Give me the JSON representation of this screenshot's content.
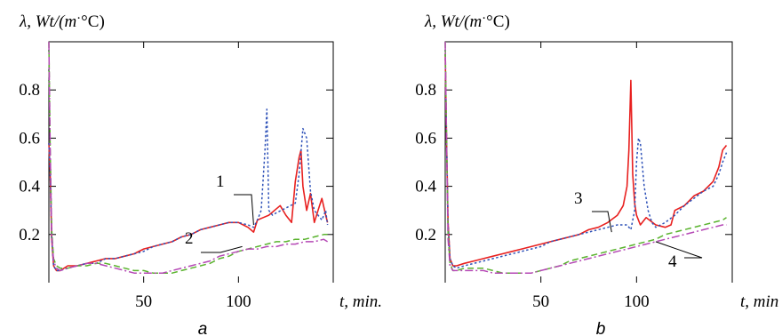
{
  "colors": {
    "red_solid": "#e8201f",
    "blue_dotted": "#2f52b8",
    "green_dashed": "#5ab32e",
    "magenta_dashdot": "#b548b5",
    "axis": "#000000"
  },
  "chart_data": [
    {
      "type": "line",
      "panel_label": "a",
      "title": "",
      "ylabel": "λ, Wt/(m·°C)",
      "ylabel_parts": {
        "main": "λ, Wt/(m",
        "dot": "·",
        "unit": "°C)"
      },
      "xlabel": "t, min.",
      "xlim": [
        0,
        150
      ],
      "ylim": [
        0,
        1.0
      ],
      "x_ticks": [
        50,
        100
      ],
      "x_tick_labels": [
        "50",
        "100"
      ],
      "y_ticks": [
        0.2,
        0.4,
        0.6,
        0.8
      ],
      "y_tick_labels": [
        "0.2",
        "0.4",
        "0.6",
        "0.8"
      ],
      "grid": false,
      "annotations": [
        {
          "text": "1",
          "target_x": 108,
          "target_y": 0.24
        },
        {
          "text": "2",
          "target_x": 102,
          "target_y": 0.15
        }
      ],
      "series": [
        {
          "style": "solid",
          "color": "#e8201f",
          "x": [
            0,
            0.7,
            1.5,
            2.5,
            4,
            6,
            10,
            15,
            20,
            25,
            30,
            35,
            40,
            45,
            50,
            55,
            60,
            65,
            70,
            75,
            80,
            85,
            90,
            95,
            100,
            105,
            108,
            110,
            113,
            116,
            119,
            122,
            125,
            128,
            130,
            132,
            133,
            134,
            136,
            138,
            140,
            142,
            144,
            146,
            147
          ],
          "y": [
            0.58,
            0.45,
            0.18,
            0.07,
            0.05,
            0.05,
            0.07,
            0.07,
            0.08,
            0.09,
            0.1,
            0.1,
            0.11,
            0.12,
            0.14,
            0.15,
            0.16,
            0.17,
            0.19,
            0.2,
            0.22,
            0.23,
            0.24,
            0.25,
            0.25,
            0.23,
            0.21,
            0.26,
            0.27,
            0.28,
            0.3,
            0.32,
            0.28,
            0.25,
            0.42,
            0.52,
            0.55,
            0.4,
            0.3,
            0.37,
            0.25,
            0.3,
            0.35,
            0.28,
            0.25
          ]
        },
        {
          "style": "dotted",
          "color": "#2f52b8",
          "x": [
            0,
            0.7,
            1.5,
            2.5,
            4,
            6,
            10,
            15,
            20,
            25,
            30,
            35,
            40,
            45,
            50,
            55,
            60,
            65,
            70,
            75,
            80,
            85,
            90,
            95,
            100,
            105,
            108,
            110,
            112,
            114,
            115,
            116,
            118,
            120,
            125,
            130,
            132,
            134,
            136,
            138,
            140,
            142,
            144,
            146,
            147
          ],
          "y": [
            0.58,
            0.45,
            0.18,
            0.07,
            0.05,
            0.05,
            0.06,
            0.07,
            0.08,
            0.08,
            0.1,
            0.1,
            0.11,
            0.12,
            0.13,
            0.15,
            0.16,
            0.17,
            0.19,
            0.2,
            0.22,
            0.23,
            0.24,
            0.25,
            0.25,
            0.24,
            0.23,
            0.26,
            0.3,
            0.55,
            0.72,
            0.3,
            0.28,
            0.29,
            0.31,
            0.33,
            0.45,
            0.64,
            0.6,
            0.38,
            0.3,
            0.28,
            0.26,
            0.3,
            0.24
          ]
        },
        {
          "style": "dashed",
          "color": "#5ab32e",
          "x": [
            0,
            0.7,
            1.5,
            2.5,
            4,
            6,
            10,
            15,
            20,
            25,
            30,
            35,
            40,
            45,
            50,
            55,
            60,
            65,
            70,
            75,
            80,
            85,
            90,
            95,
            100,
            105,
            110,
            115,
            120,
            125,
            130,
            135,
            140,
            145,
            147
          ],
          "y": [
            1.0,
            0.55,
            0.22,
            0.1,
            0.07,
            0.06,
            0.06,
            0.07,
            0.07,
            0.08,
            0.08,
            0.07,
            0.06,
            0.05,
            0.05,
            0.04,
            0.04,
            0.04,
            0.05,
            0.06,
            0.07,
            0.08,
            0.1,
            0.11,
            0.13,
            0.14,
            0.15,
            0.16,
            0.17,
            0.17,
            0.18,
            0.18,
            0.19,
            0.2,
            0.2
          ]
        },
        {
          "style": "dashdot",
          "color": "#b548b5",
          "x": [
            0,
            0.7,
            1.5,
            2.5,
            4,
            6,
            10,
            15,
            20,
            25,
            30,
            35,
            40,
            45,
            50,
            55,
            60,
            65,
            70,
            75,
            80,
            85,
            90,
            95,
            100,
            105,
            110,
            115,
            120,
            125,
            130,
            135,
            140,
            145,
            147
          ],
          "y": [
            1.0,
            0.55,
            0.2,
            0.09,
            0.06,
            0.05,
            0.06,
            0.07,
            0.08,
            0.08,
            0.07,
            0.06,
            0.05,
            0.04,
            0.04,
            0.04,
            0.04,
            0.05,
            0.06,
            0.07,
            0.08,
            0.09,
            0.11,
            0.12,
            0.13,
            0.14,
            0.14,
            0.15,
            0.15,
            0.16,
            0.16,
            0.17,
            0.17,
            0.18,
            0.17
          ]
        }
      ]
    },
    {
      "type": "line",
      "panel_label": "b",
      "title": "",
      "ylabel": "λ, Wt/(m·°C)",
      "ylabel_parts": {
        "main": "λ, Wt/(m",
        "dot": "·",
        "unit": "°C)"
      },
      "xlabel": "t, min",
      "xlim": [
        0,
        150
      ],
      "ylim": [
        0,
        1.0
      ],
      "x_ticks": [
        50,
        100
      ],
      "x_tick_labels": [
        "50",
        "100"
      ],
      "y_ticks": [
        0.2,
        0.4,
        0.6,
        0.8
      ],
      "y_tick_labels": [
        "0.2",
        "0.4",
        "0.6",
        "0.8"
      ],
      "grid": false,
      "annotations": [
        {
          "text": "3",
          "target_x": 87,
          "target_y": 0.21
        },
        {
          "text": "4",
          "target_x": 110,
          "target_y": 0.17
        }
      ],
      "series": [
        {
          "style": "solid",
          "color": "#e8201f",
          "x": [
            0,
            0.7,
            1.5,
            2.5,
            4,
            6,
            10,
            15,
            20,
            25,
            30,
            35,
            40,
            45,
            50,
            55,
            60,
            65,
            70,
            75,
            80,
            85,
            90,
            93,
            95,
            96,
            97,
            98,
            99,
            100,
            102,
            105,
            110,
            115,
            118,
            120,
            125,
            130,
            135,
            140,
            143,
            145,
            147
          ],
          "y": [
            0.95,
            0.6,
            0.25,
            0.1,
            0.07,
            0.07,
            0.08,
            0.09,
            0.1,
            0.11,
            0.12,
            0.13,
            0.14,
            0.15,
            0.16,
            0.17,
            0.18,
            0.19,
            0.2,
            0.22,
            0.23,
            0.25,
            0.28,
            0.32,
            0.4,
            0.55,
            0.84,
            0.45,
            0.33,
            0.28,
            0.24,
            0.27,
            0.24,
            0.23,
            0.24,
            0.3,
            0.32,
            0.36,
            0.38,
            0.42,
            0.48,
            0.55,
            0.57
          ]
        },
        {
          "style": "dotted",
          "color": "#2f52b8",
          "x": [
            0,
            0.7,
            1.5,
            2.5,
            4,
            6,
            10,
            15,
            20,
            25,
            30,
            35,
            40,
            45,
            50,
            55,
            60,
            65,
            70,
            75,
            80,
            85,
            90,
            95,
            97,
            99,
            100,
            101,
            102,
            104,
            106,
            108,
            110,
            115,
            120,
            125,
            130,
            135,
            140,
            143,
            145,
            147
          ],
          "y": [
            0.95,
            0.6,
            0.25,
            0.1,
            0.07,
            0.06,
            0.07,
            0.08,
            0.09,
            0.1,
            0.11,
            0.12,
            0.13,
            0.14,
            0.15,
            0.17,
            0.18,
            0.19,
            0.2,
            0.21,
            0.22,
            0.23,
            0.24,
            0.24,
            0.22,
            0.3,
            0.5,
            0.6,
            0.58,
            0.4,
            0.3,
            0.25,
            0.23,
            0.25,
            0.28,
            0.32,
            0.35,
            0.38,
            0.4,
            0.45,
            0.5,
            0.54
          ]
        },
        {
          "style": "dashed",
          "color": "#5ab32e",
          "x": [
            0,
            0.7,
            1.5,
            2.5,
            4,
            6,
            10,
            15,
            20,
            25,
            30,
            35,
            40,
            45,
            50,
            55,
            60,
            65,
            70,
            75,
            80,
            85,
            90,
            95,
            100,
            105,
            110,
            115,
            120,
            125,
            130,
            135,
            140,
            145,
            147
          ],
          "y": [
            1.0,
            0.6,
            0.2,
            0.08,
            0.05,
            0.05,
            0.06,
            0.06,
            0.06,
            0.05,
            0.04,
            0.04,
            0.04,
            0.04,
            0.05,
            0.06,
            0.07,
            0.09,
            0.1,
            0.11,
            0.12,
            0.13,
            0.14,
            0.15,
            0.16,
            0.17,
            0.18,
            0.2,
            0.21,
            0.22,
            0.23,
            0.24,
            0.25,
            0.26,
            0.27
          ]
        },
        {
          "style": "dashdot",
          "color": "#b548b5",
          "x": [
            0,
            0.7,
            1.5,
            2.5,
            4,
            6,
            10,
            15,
            20,
            25,
            30,
            35,
            40,
            45,
            50,
            55,
            60,
            65,
            70,
            75,
            80,
            85,
            90,
            95,
            100,
            105,
            110,
            115,
            120,
            125,
            130,
            135,
            140,
            145,
            147
          ],
          "y": [
            1.0,
            0.58,
            0.18,
            0.07,
            0.05,
            0.05,
            0.05,
            0.05,
            0.05,
            0.04,
            0.04,
            0.04,
            0.04,
            0.04,
            0.05,
            0.06,
            0.07,
            0.08,
            0.09,
            0.1,
            0.11,
            0.12,
            0.13,
            0.14,
            0.15,
            0.16,
            0.17,
            0.18,
            0.19,
            0.2,
            0.21,
            0.22,
            0.23,
            0.24,
            0.24
          ]
        }
      ]
    }
  ]
}
